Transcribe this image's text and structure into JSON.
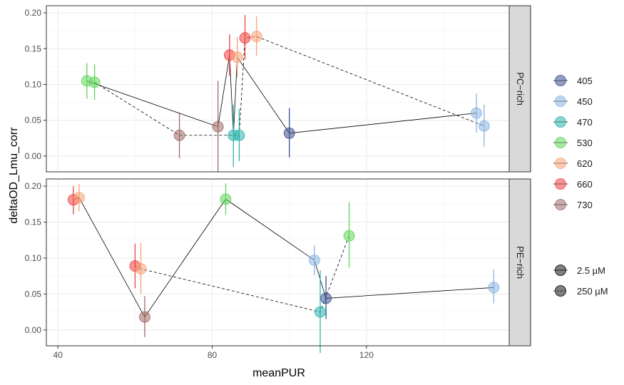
{
  "chart_data": {
    "type": "scatter",
    "xlabel": "meanPUR",
    "ylabel": "deltaOD_Lmu_corr",
    "xlim": [
      37,
      157
    ],
    "x_ticks": [
      40,
      80,
      120
    ],
    "ylim": [
      -0.022,
      0.21
    ],
    "y_ticks": [
      0.0,
      0.05,
      0.1,
      0.15,
      0.2
    ],
    "y_tick_labels": [
      "0.00",
      "0.05",
      "0.10",
      "0.15",
      "0.20"
    ],
    "grid": true,
    "colors": {
      "405": "#3b4f8f",
      "450": "#8ab4e0",
      "470": "#2bb3aa",
      "530": "#5fd65a",
      "620": "#f7a277",
      "660": "#ef4040",
      "730": "#a06a66"
    },
    "legend_wavelength": {
      "title": "",
      "position": "right",
      "entries": [
        "405",
        "450",
        "470",
        "530",
        "620",
        "660",
        "730"
      ]
    },
    "legend_conc": {
      "title": "",
      "position": "right",
      "entries": [
        {
          "label": "2.5 µM",
          "linetype": "solid"
        },
        {
          "label": "250 µM",
          "linetype": "dashed"
        }
      ]
    },
    "facets": [
      {
        "label": "PC−rich",
        "series": [
          {
            "conc": "2.5 µM",
            "points": [
              {
                "wl": "530",
                "x": 47.5,
                "y": 0.105,
                "lo": 0.08,
                "hi": 0.13
              },
              {
                "wl": "730",
                "x": 81.5,
                "y": 0.041,
                "lo": -0.022,
                "hi": 0.105
              },
              {
                "wl": "660",
                "x": 84.5,
                "y": 0.141,
                "lo": 0.112,
                "hi": 0.17
              },
              {
                "wl": "470",
                "x": 85.5,
                "y": 0.029,
                "lo": -0.015,
                "hi": 0.072
              },
              {
                "wl": "620",
                "x": 86.5,
                "y": 0.138,
                "lo": 0.11,
                "hi": 0.166
              },
              {
                "wl": "405",
                "x": 100.0,
                "y": 0.032,
                "lo": -0.002,
                "hi": 0.067
              },
              {
                "wl": "450",
                "x": 148.5,
                "y": 0.06,
                "lo": 0.033,
                "hi": 0.087
              }
            ]
          },
          {
            "conc": "250 µM",
            "points": [
              {
                "wl": "530",
                "x": 49.5,
                "y": 0.103,
                "lo": 0.078,
                "hi": 0.128
              },
              {
                "wl": "730",
                "x": 71.5,
                "y": 0.029,
                "lo": -0.003,
                "hi": 0.061
              },
              {
                "wl": "470",
                "x": 87.0,
                "y": 0.029,
                "lo": -0.007,
                "hi": 0.066
              },
              {
                "wl": "660",
                "x": 88.5,
                "y": 0.165,
                "lo": 0.135,
                "hi": 0.197
              },
              {
                "wl": "620",
                "x": 91.5,
                "y": 0.167,
                "lo": 0.14,
                "hi": 0.195
              },
              {
                "wl": "450",
                "x": 150.5,
                "y": 0.042,
                "lo": 0.013,
                "hi": 0.072
              }
            ]
          }
        ]
      },
      {
        "label": "PE−rich",
        "series": [
          {
            "conc": "2.5 µM",
            "points": [
              {
                "wl": "660",
                "x": 44.0,
                "y": 0.181,
                "lo": 0.161,
                "hi": 0.2
              },
              {
                "wl": "620",
                "x": 45.5,
                "y": 0.184,
                "lo": 0.165,
                "hi": 0.203
              },
              {
                "wl": "730",
                "x": 62.5,
                "y": 0.018,
                "lo": -0.01,
                "hi": 0.047
              },
              {
                "wl": "530",
                "x": 83.5,
                "y": 0.182,
                "lo": 0.16,
                "hi": 0.204
              },
              {
                "wl": "450",
                "x": 106.5,
                "y": 0.097,
                "lo": 0.076,
                "hi": 0.118
              },
              {
                "wl": "405",
                "x": 109.5,
                "y": 0.044,
                "lo": 0.015,
                "hi": 0.075
              },
              {
                "wl": "450",
                "x": 153.0,
                "y": 0.059,
                "lo": 0.037,
                "hi": 0.084
              }
            ]
          },
          {
            "conc": "250 µM",
            "points": [
              {
                "wl": "660",
                "x": 60.0,
                "y": 0.089,
                "lo": 0.058,
                "hi": 0.12
              },
              {
                "wl": "620",
                "x": 61.5,
                "y": 0.085,
                "lo": 0.05,
                "hi": 0.121
              },
              {
                "wl": "470",
                "x": 108.0,
                "y": 0.025,
                "lo": -0.032,
                "hi": 0.083
              },
              {
                "wl": "530",
                "x": 115.5,
                "y": 0.131,
                "lo": 0.087,
                "hi": 0.178
              }
            ]
          }
        ]
      }
    ]
  }
}
